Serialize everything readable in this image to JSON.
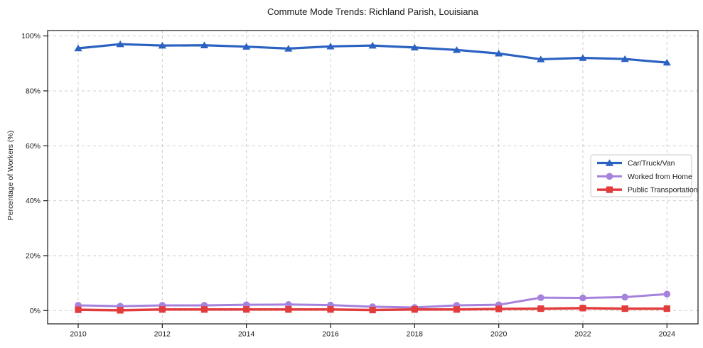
{
  "chart_data": {
    "type": "line",
    "title": "Commute Mode Trends: Richland Parish, Louisiana",
    "xlabel": "",
    "ylabel": "Percentage of Workers (%)",
    "x": [
      2010,
      2011,
      2012,
      2013,
      2014,
      2015,
      2016,
      2017,
      2018,
      2019,
      2020,
      2021,
      2022,
      2023,
      2024
    ],
    "xticks": [
      2010,
      2012,
      2014,
      2016,
      2018,
      2020,
      2022,
      2024
    ],
    "xtick_labels": [
      "2010",
      "2012",
      "2014",
      "2016",
      "2018",
      "2020",
      "2022",
      "2024"
    ],
    "yticks": [
      0,
      20,
      40,
      60,
      80,
      100
    ],
    "ytick_labels": [
      "0%",
      "20%",
      "40%",
      "60%",
      "80%",
      "100%"
    ],
    "ylim": [
      0,
      100
    ],
    "grid": "dashed, both axes",
    "legend_position": "middle-right",
    "series": [
      {
        "name": "Car/Truck/Van",
        "color": "#2b62c1",
        "marker": "triangle",
        "linewidth": 3.2,
        "values": [
          95.5,
          97.0,
          96.5,
          96.6,
          96.1,
          95.4,
          96.2,
          96.5,
          95.8,
          94.9,
          93.6,
          91.5,
          92.0,
          91.6,
          90.3
        ]
      },
      {
        "name": "Worked from Home",
        "color": "#a682dc",
        "marker": "circle",
        "linewidth": 3.0,
        "values": [
          1.9,
          1.6,
          1.9,
          1.9,
          2.1,
          2.2,
          2.0,
          1.4,
          1.1,
          1.9,
          2.1,
          4.7,
          4.6,
          4.9,
          6.0
        ]
      },
      {
        "name": "Public Transportation",
        "color": "#e23c3c",
        "marker": "square",
        "linewidth": 3.5,
        "values": [
          0.3,
          0.1,
          0.4,
          0.4,
          0.4,
          0.4,
          0.4,
          0.2,
          0.4,
          0.4,
          0.6,
          0.7,
          0.9,
          0.7,
          0.7
        ]
      }
    ]
  }
}
